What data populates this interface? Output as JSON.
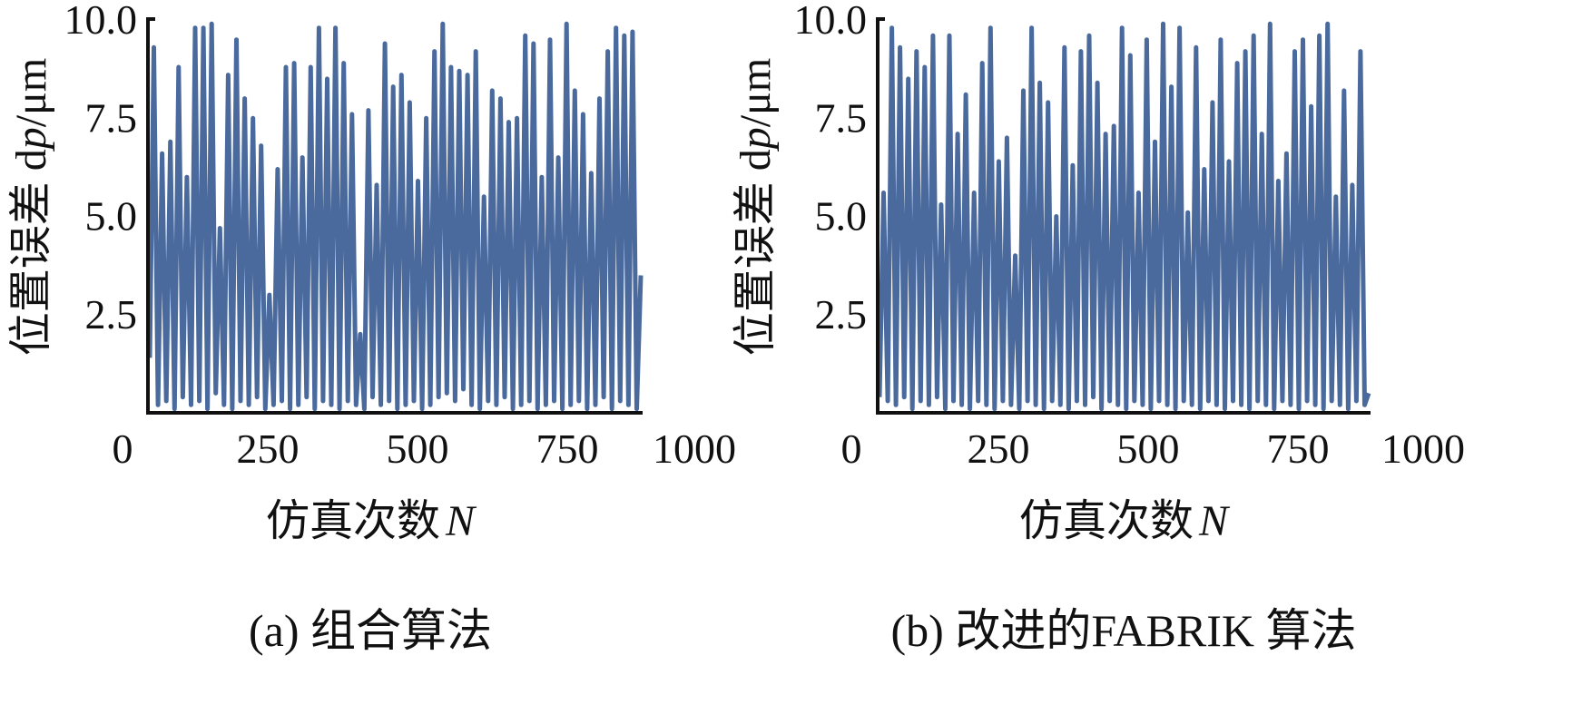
{
  "series_color": "#4a6a9e",
  "chart_data": [
    {
      "type": "line",
      "caption": "(a) 组合算法",
      "ylabel_prefix": "位置误差 d",
      "ylabel_italic": "p",
      "ylabel_suffix": "/μm",
      "xlabel_prefix": "仿真次数",
      "xlabel_italic": "N",
      "xlim": [
        0,
        1000
      ],
      "ylim": [
        0,
        10
      ],
      "xticks": [
        "0",
        "250",
        "500",
        "750",
        "1000"
      ],
      "yticks": [
        "2.5",
        "5.0",
        "7.5",
        "10.0"
      ],
      "grid": false,
      "values": [
        1.4,
        9.3,
        0.2,
        6.6,
        0.3,
        6.9,
        0.1,
        8.8,
        0.4,
        6.0,
        0.2,
        9.8,
        0.3,
        9.8,
        0.1,
        9.9,
        0.5,
        4.7,
        0.2,
        8.6,
        0.1,
        9.5,
        0.3,
        8.0,
        0.2,
        7.5,
        0.4,
        6.8,
        0.1,
        3.0,
        0.2,
        6.2,
        0.3,
        8.8,
        0.1,
        8.9,
        0.2,
        6.5,
        0.4,
        8.8,
        0.1,
        9.8,
        0.3,
        8.5,
        0.2,
        9.8,
        0.1,
        8.9,
        0.3,
        7.6,
        0.2,
        2.0,
        0.1,
        7.7,
        0.4,
        5.8,
        0.2,
        9.4,
        0.3,
        8.3,
        0.1,
        8.6,
        0.2,
        7.9,
        0.3,
        5.9,
        0.1,
        7.5,
        0.2,
        9.2,
        0.4,
        9.9,
        0.5,
        8.8,
        0.3,
        8.7,
        0.6,
        8.6,
        0.2,
        9.2,
        0.1,
        5.5,
        0.3,
        8.2,
        0.2,
        8.0,
        0.4,
        7.4,
        0.1,
        7.5,
        0.2,
        9.6,
        0.3,
        9.4,
        0.1,
        6.0,
        0.2,
        9.5,
        0.3,
        6.5,
        0.1,
        9.9,
        0.2,
        8.2,
        0.3,
        7.6,
        0.1,
        6.1,
        0.2,
        8.0,
        0.4,
        9.2,
        0.1,
        9.8,
        0.3,
        9.6,
        0.2,
        9.7,
        0.1,
        3.5
      ]
    },
    {
      "type": "line",
      "caption": "(b) 改进的FABRIK 算法",
      "ylabel_prefix": "位置误差 d",
      "ylabel_italic": "p",
      "ylabel_suffix": "/μm",
      "xlabel_prefix": "仿真次数",
      "xlabel_italic": "N",
      "xlim": [
        0,
        1000
      ],
      "ylim": [
        0,
        10
      ],
      "xticks": [
        "0",
        "250",
        "500",
        "750",
        "1000"
      ],
      "yticks": [
        "2.5",
        "5.0",
        "7.5",
        "10.0"
      ],
      "grid": false,
      "values": [
        0.4,
        5.6,
        0.3,
        9.8,
        0.2,
        9.3,
        0.4,
        8.5,
        0.1,
        9.2,
        0.3,
        8.8,
        0.2,
        9.6,
        0.4,
        5.3,
        0.1,
        9.6,
        0.3,
        7.1,
        0.2,
        8.1,
        0.1,
        5.6,
        0.3,
        8.9,
        0.2,
        9.8,
        0.1,
        6.4,
        0.3,
        7.0,
        0.2,
        4.0,
        0.1,
        8.2,
        0.3,
        9.8,
        0.2,
        8.4,
        0.1,
        7.9,
        0.3,
        5.0,
        0.2,
        9.3,
        0.1,
        6.3,
        0.3,
        9.2,
        0.2,
        9.6,
        0.4,
        8.4,
        0.1,
        7.1,
        0.3,
        7.3,
        0.2,
        9.8,
        0.1,
        9.1,
        0.3,
        5.6,
        0.2,
        9.5,
        0.1,
        6.9,
        0.3,
        9.9,
        0.2,
        8.3,
        0.1,
        9.8,
        0.3,
        5.1,
        0.2,
        9.3,
        0.1,
        6.2,
        0.3,
        7.9,
        0.2,
        9.5,
        0.1,
        6.4,
        0.3,
        8.9,
        0.2,
        9.2,
        0.1,
        9.6,
        0.3,
        7.1,
        0.2,
        9.9,
        0.1,
        5.9,
        0.3,
        6.6,
        0.2,
        9.2,
        0.1,
        9.5,
        0.3,
        7.8,
        0.2,
        9.6,
        0.1,
        9.9,
        0.3,
        5.5,
        0.2,
        8.2,
        0.1,
        5.8,
        0.3,
        9.2,
        0.2,
        0.5
      ]
    }
  ]
}
